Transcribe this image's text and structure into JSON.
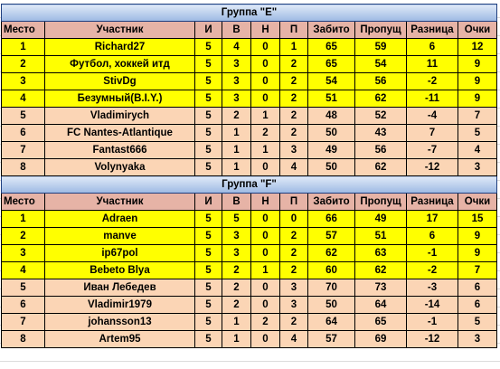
{
  "headers": {
    "place": "Место",
    "player": "Участник",
    "games": "И",
    "wins": "В",
    "draws": "Н",
    "losses": "П",
    "scored": "Забито",
    "conceded": "Пропущ",
    "diff": "Разница",
    "points": "Очки"
  },
  "groups": [
    {
      "title": "Группа \"E\"",
      "rows": [
        {
          "place": "1",
          "player": "Richard27",
          "games": "5",
          "wins": "4",
          "draws": "0",
          "losses": "1",
          "scored": "65",
          "conceded": "59",
          "diff": "6",
          "points": "12",
          "color": "yellow"
        },
        {
          "place": "2",
          "player": "Футбол, хоккей итд",
          "games": "5",
          "wins": "3",
          "draws": "0",
          "losses": "2",
          "scored": "65",
          "conceded": "54",
          "diff": "11",
          "points": "9",
          "color": "yellow"
        },
        {
          "place": "3",
          "player": "StivDg",
          "games": "5",
          "wins": "3",
          "draws": "0",
          "losses": "2",
          "scored": "54",
          "conceded": "56",
          "diff": "-2",
          "points": "9",
          "color": "yellow"
        },
        {
          "place": "4",
          "player": "Безумный(B.I.Y.)",
          "games": "5",
          "wins": "3",
          "draws": "0",
          "losses": "2",
          "scored": "51",
          "conceded": "62",
          "diff": "-11",
          "points": "9",
          "color": "yellow"
        },
        {
          "place": "5",
          "player": "Vladimirych",
          "games": "5",
          "wins": "2",
          "draws": "1",
          "losses": "2",
          "scored": "48",
          "conceded": "52",
          "diff": "-4",
          "points": "7",
          "color": "peach"
        },
        {
          "place": "6",
          "player": "FC Nantes-Atlantique",
          "games": "5",
          "wins": "1",
          "draws": "2",
          "losses": "2",
          "scored": "50",
          "conceded": "43",
          "diff": "7",
          "points": "5",
          "color": "peach"
        },
        {
          "place": "7",
          "player": "Fantast666",
          "games": "5",
          "wins": "1",
          "draws": "1",
          "losses": "3",
          "scored": "49",
          "conceded": "56",
          "diff": "-7",
          "points": "4",
          "color": "peach"
        },
        {
          "place": "8",
          "player": "Volynyaka",
          "games": "5",
          "wins": "1",
          "draws": "0",
          "losses": "4",
          "scored": "50",
          "conceded": "62",
          "diff": "-12",
          "points": "3",
          "color": "peach"
        }
      ]
    },
    {
      "title": "Группа \"F\"",
      "rows": [
        {
          "place": "1",
          "player": "Adraen",
          "games": "5",
          "wins": "5",
          "draws": "0",
          "losses": "0",
          "scored": "66",
          "conceded": "49",
          "diff": "17",
          "points": "15",
          "color": "yellow"
        },
        {
          "place": "2",
          "player": "manve",
          "games": "5",
          "wins": "3",
          "draws": "0",
          "losses": "2",
          "scored": "57",
          "conceded": "51",
          "diff": "6",
          "points": "9",
          "color": "yellow"
        },
        {
          "place": "3",
          "player": "ip67pol",
          "games": "5",
          "wins": "3",
          "draws": "0",
          "losses": "2",
          "scored": "62",
          "conceded": "63",
          "diff": "-1",
          "points": "9",
          "color": "yellow"
        },
        {
          "place": "4",
          "player": "Bebeto Blya",
          "games": "5",
          "wins": "2",
          "draws": "1",
          "losses": "2",
          "scored": "60",
          "conceded": "62",
          "diff": "-2",
          "points": "7",
          "color": "yellow"
        },
        {
          "place": "5",
          "player": "Иван Лебедев",
          "games": "5",
          "wins": "2",
          "draws": "0",
          "losses": "3",
          "scored": "70",
          "conceded": "73",
          "diff": "-3",
          "points": "6",
          "color": "peach"
        },
        {
          "place": "6",
          "player": "Vladimir1979",
          "games": "5",
          "wins": "2",
          "draws": "0",
          "losses": "3",
          "scored": "50",
          "conceded": "64",
          "diff": "-14",
          "points": "6",
          "color": "peach"
        },
        {
          "place": "7",
          "player": "johansson13",
          "games": "5",
          "wins": "1",
          "draws": "2",
          "losses": "2",
          "scored": "64",
          "conceded": "65",
          "diff": "-1",
          "points": "5",
          "color": "peach"
        },
        {
          "place": "8",
          "player": "Artem95",
          "games": "5",
          "wins": "1",
          "draws": "0",
          "losses": "4",
          "scored": "57",
          "conceded": "69",
          "diff": "-12",
          "points": "3",
          "color": "peach"
        }
      ]
    }
  ]
}
